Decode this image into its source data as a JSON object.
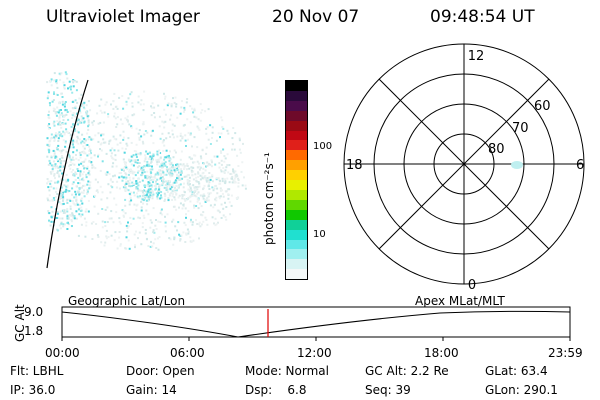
{
  "header": {
    "instrument": "Ultraviolet Imager",
    "date": "20 Nov 07",
    "time": "09:48:54 UT"
  },
  "colorbar": {
    "label": "photon cm⁻²s⁻¹",
    "ticks": [
      "100",
      "10"
    ],
    "colors": [
      "#000000",
      "#2a0a3a",
      "#4a0c4a",
      "#6e0a2a",
      "#9a0a14",
      "#c00814",
      "#e0201a",
      "#ff6a00",
      "#ffa000",
      "#ffd000",
      "#e8f000",
      "#b0e800",
      "#60d800",
      "#10c800",
      "#10d098",
      "#20e0d0",
      "#60e8e8",
      "#a0f0f0",
      "#d8f4f4",
      "#f4f8f8"
    ]
  },
  "polar": {
    "hour_labels": [
      "12",
      "18",
      "6",
      "0"
    ],
    "lat_labels": [
      "60",
      "70",
      "80"
    ]
  },
  "timeline": {
    "axis_label": "GC Alt",
    "y_ticks": [
      "9.0",
      "1.8"
    ],
    "left_label": "Geographic Lat/Lon",
    "right_label": "Apex  MLat/MLT",
    "x_ticks": [
      "00:00",
      "06:00",
      "12:00",
      "18:00",
      "23:59"
    ]
  },
  "info": {
    "row1": [
      "Flt: LBHL",
      "Door: Open",
      "Mode: Normal",
      "GC Alt: 2.2 Re",
      "GLat: 63.4"
    ],
    "row2": [
      "IP: 36.0",
      "Gain: 14",
      "Dsp:    6.8",
      "Seq: 39",
      "GLon: 290.1"
    ]
  }
}
